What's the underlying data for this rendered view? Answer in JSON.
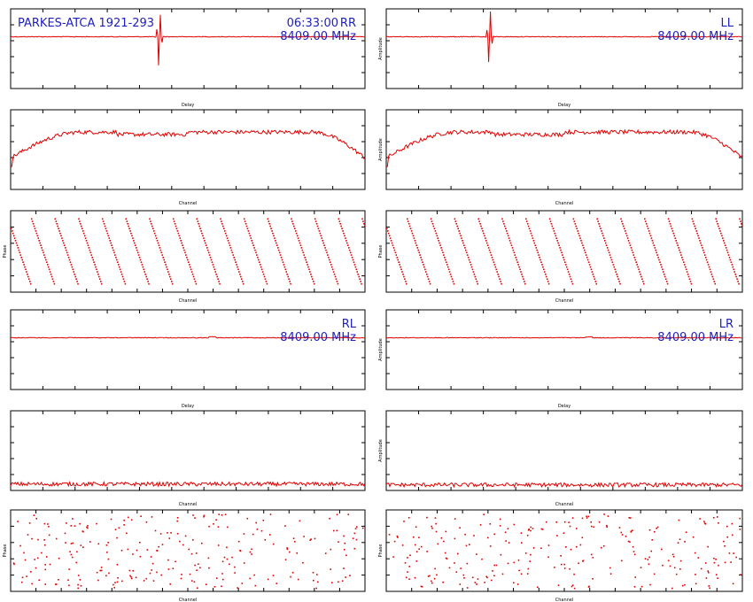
{
  "colors": {
    "trace": "#e00000",
    "label": "#2020c0",
    "axis": "#000000",
    "background": "#ffffff"
  },
  "chart_data": [
    {
      "type": "line",
      "pol": "RR",
      "kind": "delay",
      "source_label": "PARKES-ATCA 1921-293",
      "time_label": "06:33:00",
      "pol_label": "RR",
      "freq_label": "8409.00 MHz",
      "xlabel": "Delay",
      "ylabel": "",
      "peak_delay": 0.42,
      "peak_amplitude": [
        0.85,
        -0.65
      ],
      "grid": false
    },
    {
      "type": "line",
      "pol": "LL",
      "kind": "delay",
      "source_label": "",
      "time_label": "",
      "pol_label": "LL",
      "freq_label": "8409.00 MHz",
      "xlabel": "Delay",
      "ylabel": "Amplitude",
      "peak_delay": 0.29,
      "peak_amplitude": [
        0.75,
        -0.75
      ],
      "grid": false
    },
    {
      "type": "line",
      "pol": "RR",
      "kind": "amplitude",
      "xlabel": "Channel",
      "ylabel": "",
      "profile": "bandpass",
      "level": 0.72
    },
    {
      "type": "line",
      "pol": "LL",
      "kind": "amplitude",
      "xlabel": "Channel",
      "ylabel": "Amplitude",
      "profile": "bandpass",
      "level": 0.72
    },
    {
      "type": "scatter",
      "pol": "RR",
      "kind": "phase",
      "xlabel": "Channel",
      "ylabel": "Phase",
      "phase_wraps": 15
    },
    {
      "type": "scatter",
      "pol": "LL",
      "kind": "phase",
      "xlabel": "Channel",
      "ylabel": "Phase",
      "phase_wraps": 15
    },
    {
      "type": "line",
      "pol": "RL",
      "kind": "delay",
      "source_label": "",
      "time_label": "",
      "pol_label": "RL",
      "freq_label": "8409.00 MHz",
      "xlabel": "Delay",
      "ylabel": "",
      "flat": true
    },
    {
      "type": "line",
      "pol": "LR",
      "kind": "delay",
      "source_label": "",
      "time_label": "",
      "pol_label": "LR",
      "freq_label": "8409.00 MHz",
      "xlabel": "Delay",
      "ylabel": "Amplitude",
      "flat": true
    },
    {
      "type": "line",
      "pol": "RL",
      "kind": "amplitude",
      "xlabel": "Channel",
      "ylabel": "",
      "profile": "noise",
      "level": 0.08
    },
    {
      "type": "line",
      "pol": "LR",
      "kind": "amplitude",
      "xlabel": "Channel",
      "ylabel": "Amplitude",
      "profile": "noise",
      "level": 0.07
    },
    {
      "type": "scatter",
      "pol": "RL",
      "kind": "phase",
      "xlabel": "Channel",
      "ylabel": "Phase",
      "random": true
    },
    {
      "type": "scatter",
      "pol": "LR",
      "kind": "phase",
      "xlabel": "Channel",
      "ylabel": "Phase",
      "random": true
    }
  ]
}
